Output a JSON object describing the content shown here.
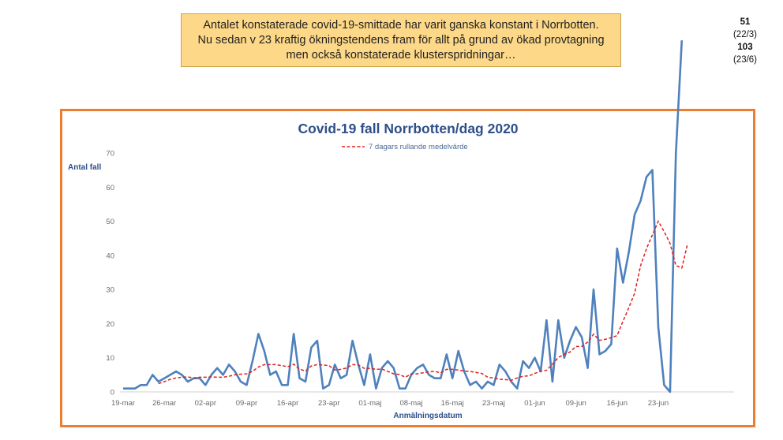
{
  "callout": {
    "lines": [
      "Antalet konstaterade covid-19-smittade har varit ganska konstant i Norrbotten.",
      "Nu sedan v 23 kraftig ökningstendens fram för allt på grund av ökad provtagning",
      "men också konstaterade klusterspridningar…"
    ]
  },
  "peak_notes": {
    "first_value": "51",
    "first_date": "(22/3)",
    "second_value": "103",
    "second_date": "(23/6)"
  },
  "colors": {
    "frame": "#ec7d31",
    "daily_line": "#4f81bd",
    "rolling_line": "#e02020",
    "callout_bg": "#fdd888"
  },
  "chart_data": {
    "type": "line",
    "title": "Covid-19 fall Norrbotten/dag 2020",
    "xlabel": "Anmälningsdatum",
    "ylabel": "Antal fall",
    "ylim": [
      0,
      70
    ],
    "yticks": [
      0,
      10,
      20,
      30,
      40,
      50,
      60,
      70
    ],
    "x_tick_labels": [
      "19-mar",
      "26-mar",
      "02-apr",
      "09-apr",
      "16-apr",
      "23-apr",
      "01-maj",
      "08-maj",
      "16-maj",
      "23-maj",
      "01-jun",
      "09-jun",
      "16-jun",
      "23-jun"
    ],
    "legend_position": "top-center",
    "series": [
      {
        "name": "",
        "style": "solid",
        "values": [
          1,
          1,
          1,
          2,
          2,
          5,
          3,
          4,
          5,
          6,
          5,
          3,
          4,
          4,
          2,
          5,
          7,
          5,
          8,
          6,
          3,
          2,
          9,
          17,
          12,
          5,
          6,
          2,
          2,
          17,
          4,
          3,
          13,
          15,
          1,
          2,
          8,
          4,
          5,
          15,
          8,
          2,
          11,
          1,
          7,
          9,
          7,
          1,
          1,
          5,
          7,
          8,
          5,
          4,
          4,
          11,
          4,
          12,
          6,
          2,
          3,
          1,
          3,
          2,
          8,
          6,
          3,
          1,
          9,
          7,
          10,
          6,
          21,
          3,
          21,
          10,
          15,
          19,
          16,
          7,
          30,
          11,
          12,
          14,
          42,
          32,
          41,
          52,
          56,
          63,
          65,
          19,
          2,
          0,
          70,
          103
        ]
      },
      {
        "name": "7 dagars rullande medelvärde",
        "style": "dashed",
        "start_index": 6,
        "values": [
          2.4,
          3,
          3.7,
          4.1,
          4.3,
          4.4,
          4.1,
          4.3,
          4.3,
          4.4,
          4.3,
          4.3,
          4.6,
          5,
          5.2,
          5.3,
          6,
          7.3,
          8,
          8,
          8,
          7.7,
          7.4,
          8.1,
          6.7,
          6.1,
          7.6,
          8,
          7.9,
          7.7,
          6.4,
          6.6,
          7,
          8,
          7.9,
          6.9,
          6.9,
          6.6,
          6.7,
          6,
          5.3,
          5.1,
          4.3,
          5.3,
          5.3,
          5.6,
          5.9,
          6,
          5.6,
          6.6,
          6.6,
          6.4,
          6.1,
          6,
          5.7,
          5.4,
          4.3,
          4.1,
          3.7,
          3.6,
          3.4,
          4.1,
          4.6,
          4.7,
          5.4,
          6.1,
          6.3,
          8.1,
          10.1,
          11,
          11.7,
          13.3,
          13.3,
          14.6,
          16.9,
          15.1,
          15.4,
          15.9,
          16.5,
          20.7,
          24.7,
          29,
          37,
          42,
          46,
          50,
          47,
          43.5,
          37,
          36.3,
          43.5
        ]
      }
    ]
  }
}
